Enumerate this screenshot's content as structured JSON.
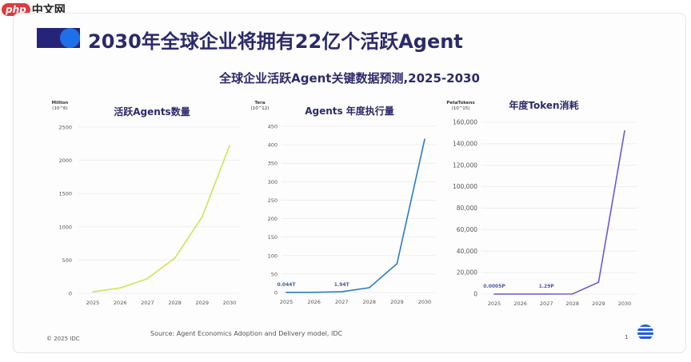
{
  "watermark": {
    "badge": "php",
    "text": "中文网"
  },
  "header": {
    "title": "2030年全球企业将拥有22亿个活跃Agent",
    "subtitle": "全球企业活跃Agent关键数据预测,2025-2030"
  },
  "footer": {
    "copyright": "© 2025 IDC",
    "source": "Source: Agent Economics Adoption and Delivery model, IDC",
    "page": "1"
  },
  "chart_data": [
    {
      "type": "line",
      "title": "活跃Agents数量",
      "unit": "Million (10^6)",
      "color": "#d4e157",
      "categories": [
        "2025",
        "2026",
        "2027",
        "2028",
        "2029",
        "2030"
      ],
      "values": [
        20,
        80,
        220,
        530,
        1150,
        2220
      ],
      "ylim": [
        0,
        2500
      ],
      "yticks": [
        "0",
        "500",
        "1000",
        "1500",
        "2000",
        "2500"
      ],
      "ytick_values": [
        0,
        500,
        1000,
        1500,
        2000,
        2500
      ],
      "grid": true,
      "labels": []
    },
    {
      "type": "line",
      "title": "Agents 年度执行量",
      "unit": "Tera (10^12)",
      "color": "#2a7cc7",
      "categories": [
        "2025",
        "2026",
        "2027",
        "2028",
        "2029",
        "2030"
      ],
      "values": [
        0.044,
        0.5,
        1.94,
        13,
        78,
        415
      ],
      "ylim": [
        0,
        450
      ],
      "yticks": [
        "0",
        "50",
        "100",
        "150",
        "200",
        "250",
        "300",
        "350",
        "400",
        "450"
      ],
      "ytick_values": [
        0,
        50,
        100,
        150,
        200,
        250,
        300,
        350,
        400,
        450
      ],
      "grid": true,
      "labels": [
        {
          "index": 0,
          "text": "0.044T"
        },
        {
          "index": 2,
          "text": "1.94T"
        }
      ]
    },
    {
      "type": "line",
      "title": "年度Token消耗",
      "unit": "PetaTokens (10^15)",
      "color": "#6a5acd",
      "categories": [
        "2025",
        "2026",
        "2027",
        "2028",
        "2029",
        "2030"
      ],
      "values": [
        0.0005,
        0.1,
        1.29,
        100,
        11000,
        152000
      ],
      "ylim": [
        0,
        160000
      ],
      "yticks": [
        "0",
        "20,000",
        "40,000",
        "60,000",
        "80,000",
        "100,000",
        "120,000",
        "140,000",
        "160,000"
      ],
      "ytick_values": [
        0,
        20000,
        40000,
        60000,
        80000,
        100000,
        120000,
        140000,
        160000
      ],
      "grid": true,
      "labels": [
        {
          "index": 0,
          "text": "0.0005P"
        },
        {
          "index": 2,
          "text": "1.29P"
        }
      ]
    }
  ]
}
